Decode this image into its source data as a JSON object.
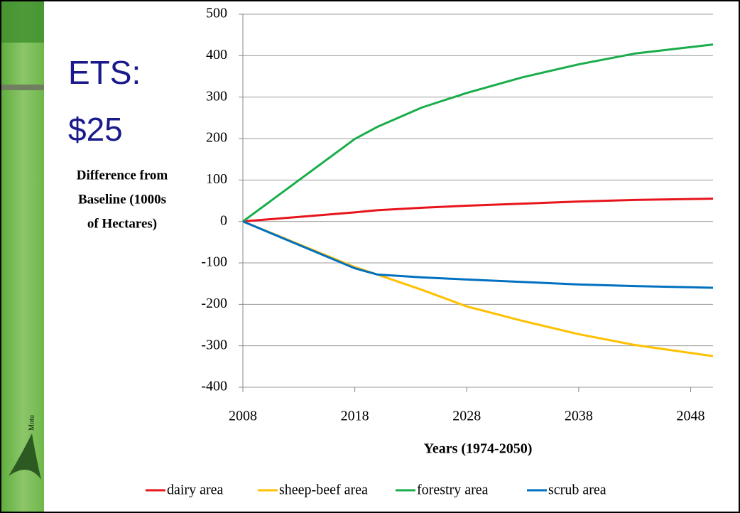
{
  "title_lines": [
    "ETS:",
    "$25"
  ],
  "logo": "Motu",
  "chart_data": {
    "type": "line",
    "y_label_lines": [
      "Difference from",
      "Baseline (1000s",
      "of Hectares)"
    ],
    "x_label": "Years (1974-2050)",
    "x": [
      2008,
      2018,
      2020,
      2024,
      2028,
      2033,
      2038,
      2043,
      2050
    ],
    "series": [
      {
        "name": "dairy area",
        "color": "#e8141c",
        "values": [
          0,
          22,
          27,
          33,
          38,
          43,
          48,
          52,
          55
        ]
      },
      {
        "name": "sheep-beef area",
        "color": "#ffc000",
        "values": [
          0,
          -110,
          -128,
          -165,
          -205,
          -240,
          -272,
          -298,
          -325
        ]
      },
      {
        "name": "forestry area",
        "color": "#1aad4b",
        "values": [
          0,
          199,
          228,
          275,
          310,
          348,
          379,
          405,
          427
        ]
      },
      {
        "name": "scrub area",
        "color": "#0070c0",
        "values": [
          0,
          -113,
          -128,
          -135,
          -140,
          -146,
          -152,
          -156,
          -160
        ]
      }
    ],
    "xlim": [
      2008,
      2050
    ],
    "xticks": [
      2008,
      2018,
      2028,
      2038,
      2048
    ],
    "ylim": [
      -400,
      500
    ],
    "yticks": [
      -400,
      -300,
      -200,
      -100,
      0,
      100,
      200,
      300,
      400,
      500
    ],
    "grid": true,
    "legend": "bottom"
  }
}
